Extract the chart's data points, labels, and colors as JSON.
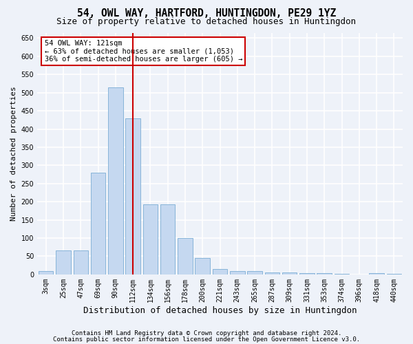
{
  "title": "54, OWL WAY, HARTFORD, HUNTINGDON, PE29 1YZ",
  "subtitle": "Size of property relative to detached houses in Huntingdon",
  "xlabel": "Distribution of detached houses by size in Huntingdon",
  "ylabel": "Number of detached properties",
  "categories": [
    "3sqm",
    "25sqm",
    "47sqm",
    "69sqm",
    "90sqm",
    "112sqm",
    "134sqm",
    "156sqm",
    "178sqm",
    "200sqm",
    "221sqm",
    "243sqm",
    "265sqm",
    "287sqm",
    "309sqm",
    "331sqm",
    "353sqm",
    "374sqm",
    "396sqm",
    "418sqm",
    "440sqm"
  ],
  "values": [
    10,
    65,
    65,
    280,
    515,
    430,
    193,
    193,
    100,
    45,
    15,
    10,
    10,
    5,
    5,
    4,
    3,
    2,
    0,
    3,
    2
  ],
  "bar_color": "#c5d8f0",
  "bar_edge_color": "#7aadd4",
  "vline_x_index": 5,
  "vline_color": "#cc0000",
  "annotation_line1": "54 OWL WAY: 121sqm",
  "annotation_line2": "← 63% of detached houses are smaller (1,053)",
  "annotation_line3": "36% of semi-detached houses are larger (605) →",
  "annotation_box_color": "#ffffff",
  "annotation_box_edge_color": "#cc0000",
  "ylim_max": 665,
  "yticks": [
    0,
    50,
    100,
    150,
    200,
    250,
    300,
    350,
    400,
    450,
    500,
    550,
    600,
    650
  ],
  "footnote1": "Contains HM Land Registry data © Crown copyright and database right 2024.",
  "footnote2": "Contains public sector information licensed under the Open Government Licence v3.0.",
  "background_color": "#eef2f9",
  "grid_color": "#ffffff",
  "title_fontsize": 10.5,
  "subtitle_fontsize": 9,
  "annotation_fontsize": 7.5,
  "ylabel_fontsize": 8,
  "xlabel_fontsize": 9,
  "tick_fontsize": 7,
  "footnote_fontsize": 6.5
}
